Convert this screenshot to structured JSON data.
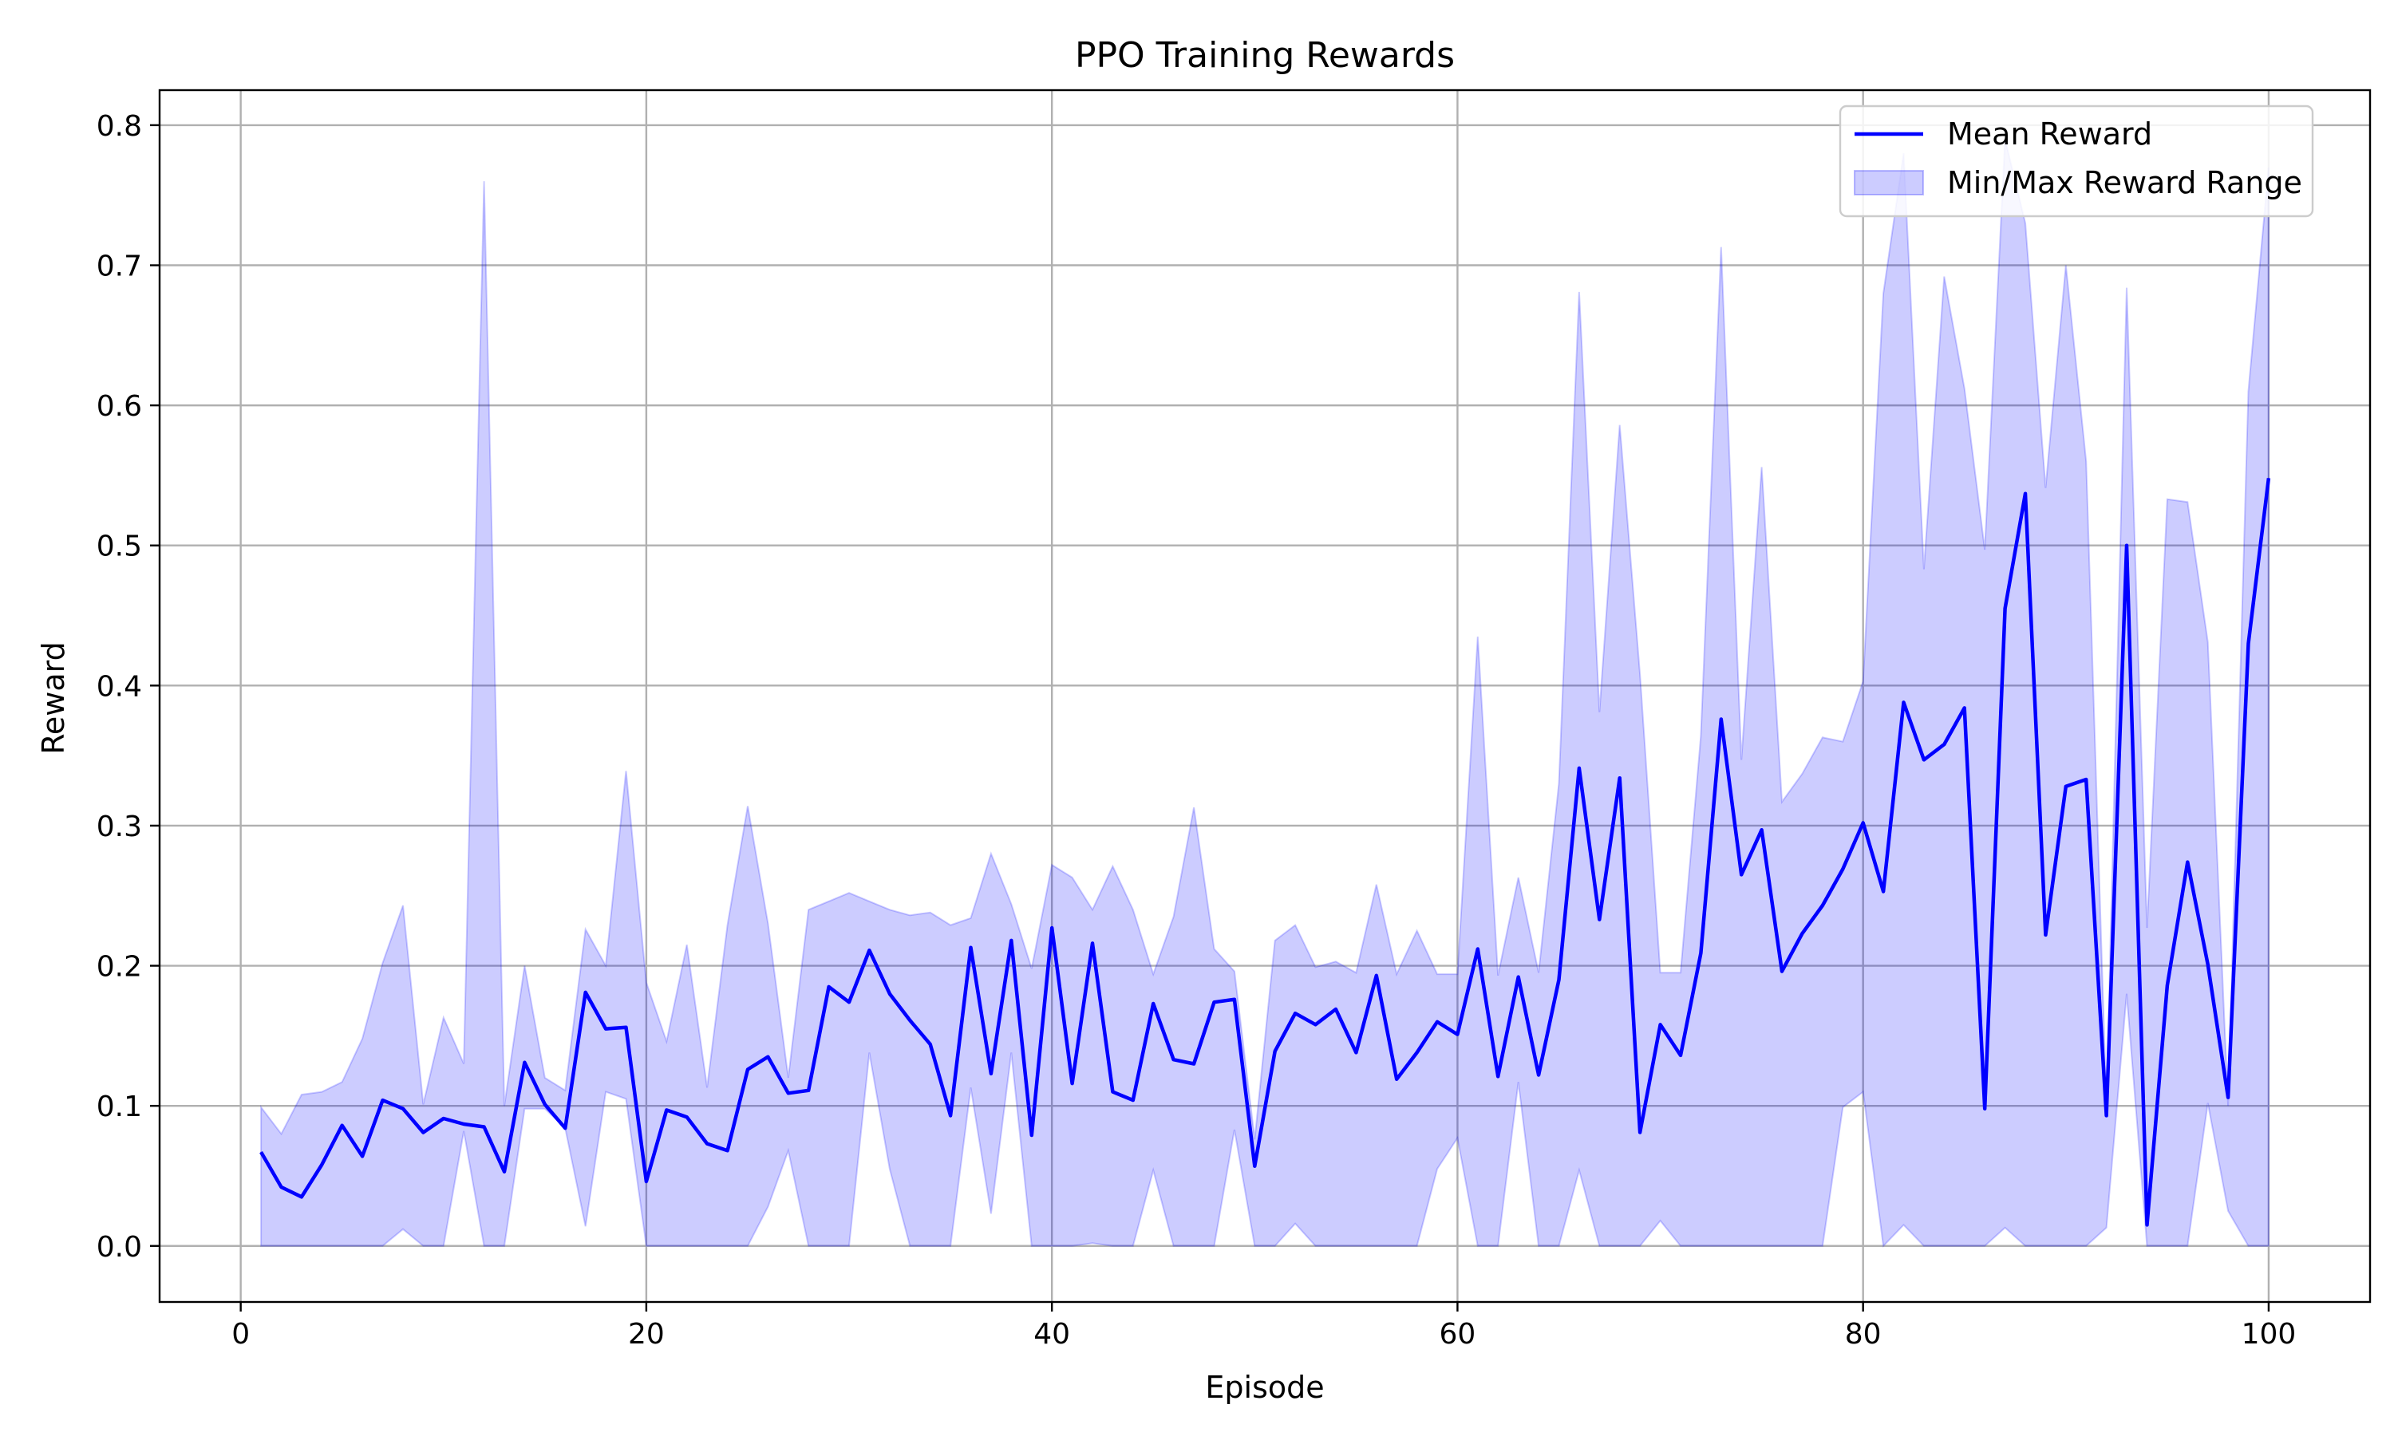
{
  "chart_data": {
    "type": "line",
    "title": "PPO Training Rewards",
    "xlabel": "Episode",
    "ylabel": "Reward",
    "xlim": [
      -4,
      105
    ],
    "ylim": [
      -0.04,
      0.825
    ],
    "xticks": [
      0,
      20,
      40,
      60,
      80,
      100
    ],
    "xtick_labels": [
      "0",
      "20",
      "40",
      "60",
      "80",
      "100"
    ],
    "yticks": [
      0.0,
      0.1,
      0.2,
      0.3,
      0.4,
      0.5,
      0.6,
      0.7,
      0.8
    ],
    "ytick_labels": [
      "0.0",
      "0.1",
      "0.2",
      "0.3",
      "0.4",
      "0.5",
      "0.6",
      "0.7",
      "0.8"
    ],
    "grid": true,
    "legend_position": "top-right",
    "colors": {
      "mean": "#0000ff",
      "band": "#0000ff",
      "grid": "#b0b0b0"
    },
    "x": [
      1,
      2,
      3,
      4,
      5,
      6,
      7,
      8,
      9,
      10,
      11,
      12,
      13,
      14,
      15,
      16,
      17,
      18,
      19,
      20,
      21,
      22,
      23,
      24,
      25,
      26,
      27,
      28,
      29,
      30,
      31,
      32,
      33,
      34,
      35,
      36,
      37,
      38,
      39,
      40,
      41,
      42,
      43,
      44,
      45,
      46,
      47,
      48,
      49,
      50,
      51,
      52,
      53,
      54,
      55,
      56,
      57,
      58,
      59,
      60,
      61,
      62,
      63,
      64,
      65,
      66,
      67,
      68,
      69,
      70,
      71,
      72,
      73,
      74,
      75,
      76,
      77,
      78,
      79,
      80,
      81,
      82,
      83,
      84,
      85,
      86,
      87,
      88,
      89,
      90,
      91,
      92,
      93,
      94,
      95,
      96,
      97,
      98,
      99,
      100
    ],
    "series": [
      {
        "name": "Mean Reward",
        "style": "line",
        "values": [
          0.067,
          0.042,
          0.035,
          0.058,
          0.086,
          0.064,
          0.104,
          0.098,
          0.081,
          0.091,
          0.087,
          0.085,
          0.053,
          0.131,
          0.101,
          0.084,
          0.181,
          0.155,
          0.156,
          0.046,
          0.097,
          0.092,
          0.073,
          0.068,
          0.126,
          0.135,
          0.109,
          0.111,
          0.185,
          0.174,
          0.211,
          0.18,
          0.161,
          0.144,
          0.093,
          0.213,
          0.123,
          0.218,
          0.079,
          0.227,
          0.116,
          0.216,
          0.11,
          0.104,
          0.173,
          0.133,
          0.13,
          0.174,
          0.176,
          0.057,
          0.139,
          0.166,
          0.158,
          0.169,
          0.138,
          0.193,
          0.119,
          0.138,
          0.16,
          0.151,
          0.212,
          0.121,
          0.192,
          0.122,
          0.19,
          0.341,
          0.233,
          0.334,
          0.081,
          0.158,
          0.136,
          0.209,
          0.376,
          0.265,
          0.297,
          0.196,
          0.223,
          0.243,
          0.269,
          0.302,
          0.253,
          0.388,
          0.347,
          0.358,
          0.384,
          0.098,
          0.455,
          0.537,
          0.222,
          0.328,
          0.333,
          0.093,
          0.5,
          0.015,
          0.186,
          0.274,
          0.201,
          0.106,
          0.43,
          0.548
        ]
      },
      {
        "name": "Min/Max Reward Range",
        "style": "band",
        "min": [
          0.0,
          0.0,
          0.0,
          0.0,
          0.0,
          0.0,
          0.0,
          0.012,
          0.0,
          0.0,
          0.082,
          0.0,
          0.0,
          0.098,
          0.098,
          0.084,
          0.014,
          0.11,
          0.105,
          0.0,
          0.0,
          0.0,
          0.0,
          0.0,
          0.0,
          0.028,
          0.068,
          0.0,
          0.0,
          0.0,
          0.138,
          0.055,
          0.0,
          0.0,
          0.0,
          0.113,
          0.023,
          0.138,
          0.0,
          0.0,
          0.0,
          0.002,
          0.0,
          0.0,
          0.054,
          0.0,
          0.0,
          0.0,
          0.083,
          0.0,
          0.0,
          0.016,
          0.0,
          0.0,
          0.0,
          0.0,
          0.0,
          0.0,
          0.055,
          0.077,
          0.0,
          0.0,
          0.117,
          0.0,
          0.0,
          0.054,
          0.0,
          0.0,
          0.0,
          0.018,
          0.0,
          0.0,
          0.0,
          0.0,
          0.0,
          0.0,
          0.0,
          0.0,
          0.099,
          0.11,
          0.0,
          0.015,
          0.0,
          0.0,
          0.0,
          0.0,
          0.013,
          0.0,
          0.0,
          0.0,
          0.0,
          0.013,
          0.18,
          0.0,
          0.0,
          0.0,
          0.102,
          0.025,
          0.0,
          0.0
        ],
        "max": [
          0.099,
          0.08,
          0.108,
          0.11,
          0.117,
          0.148,
          0.202,
          0.243,
          0.101,
          0.163,
          0.13,
          0.76,
          0.1,
          0.2,
          0.12,
          0.111,
          0.226,
          0.2,
          0.339,
          0.188,
          0.146,
          0.215,
          0.113,
          0.229,
          0.314,
          0.23,
          0.12,
          0.24,
          0.246,
          0.252,
          0.246,
          0.24,
          0.236,
          0.238,
          0.229,
          0.234,
          0.28,
          0.244,
          0.198,
          0.272,
          0.263,
          0.24,
          0.271,
          0.24,
          0.194,
          0.235,
          0.313,
          0.212,
          0.196,
          0.076,
          0.218,
          0.229,
          0.199,
          0.203,
          0.195,
          0.258,
          0.194,
          0.225,
          0.194,
          0.194,
          0.435,
          0.193,
          0.263,
          0.195,
          0.33,
          0.681,
          0.381,
          0.586,
          0.408,
          0.195,
          0.195,
          0.364,
          0.713,
          0.347,
          0.556,
          0.317,
          0.337,
          0.363,
          0.36,
          0.403,
          0.68,
          0.78,
          0.483,
          0.692,
          0.612,
          0.497,
          0.79,
          0.73,
          0.541,
          0.7,
          0.56,
          0.1,
          0.684,
          0.227,
          0.533,
          0.531,
          0.431,
          0.1,
          0.61,
          0.77
        ]
      }
    ]
  }
}
